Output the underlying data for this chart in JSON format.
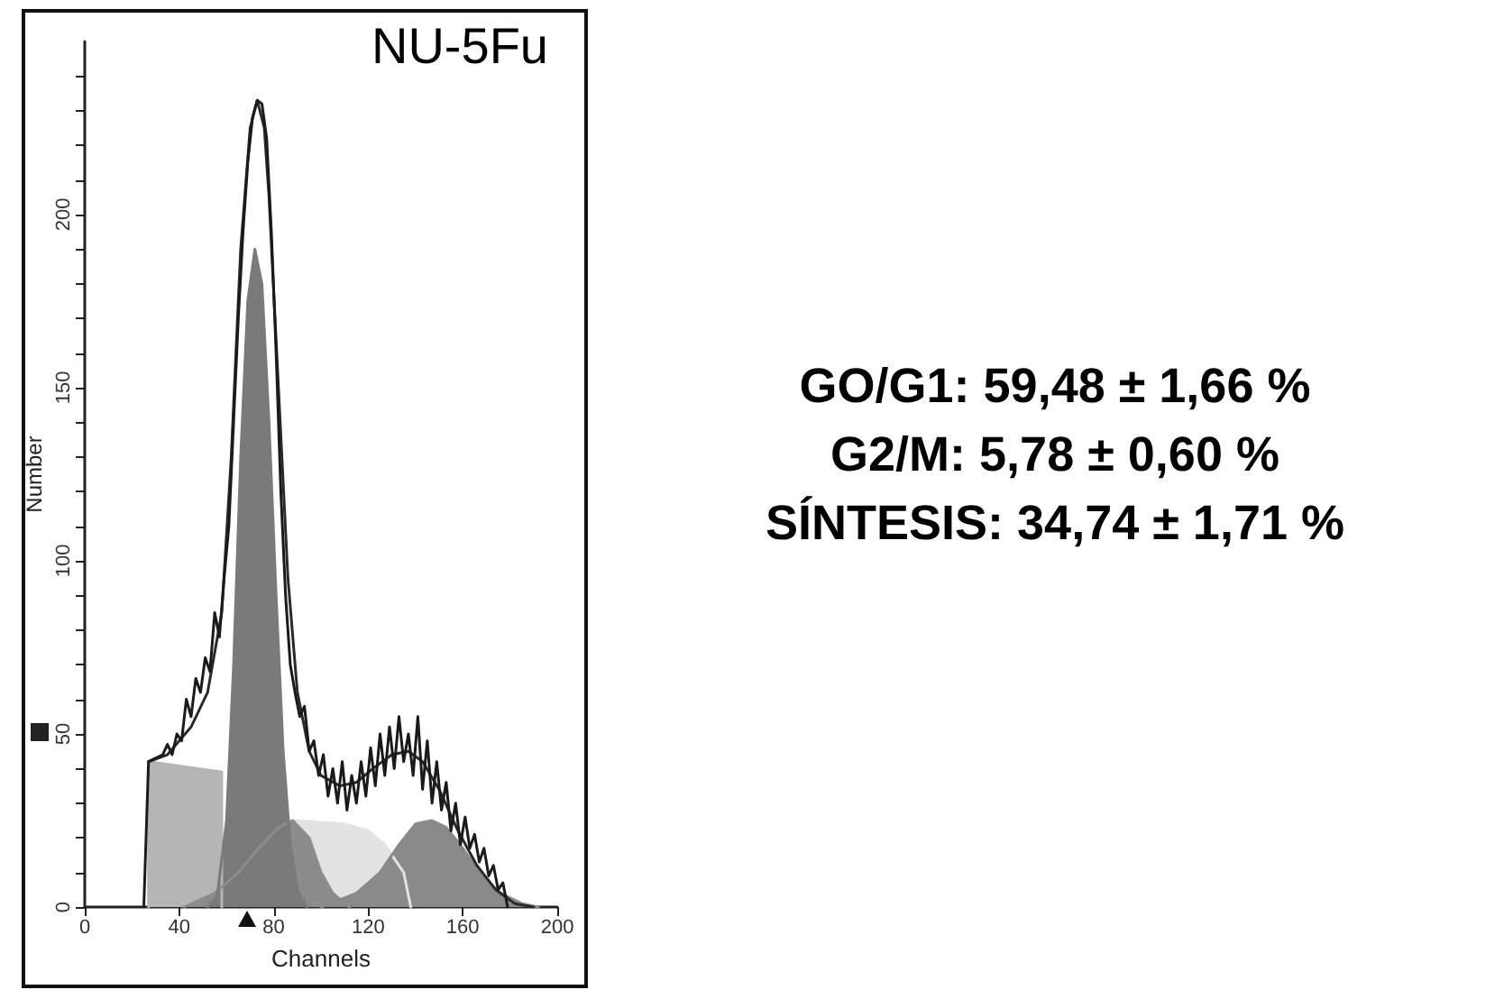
{
  "chart_data": {
    "type": "line",
    "xlabel": "Channels",
    "ylabel": "Number",
    "annotations": [
      "NU-5Fu",
      "GO/G1: 59,48 ± 1,66 %",
      "G2/M: 5,78 ± 0,60 %",
      "SÍNTESIS: 34,74 ± 1,71 %"
    ],
    "xlim": [
      0,
      200
    ],
    "xticks": [
      0,
      40,
      80,
      120,
      160,
      200
    ],
    "ylim": [
      0,
      250
    ],
    "yticks": [
      0,
      {
        "value": 10,
        "label": null
      },
      {
        "value": 20,
        "label": null
      },
      {
        "value": 30,
        "label": null
      },
      {
        "value": 40,
        "label": null
      },
      50,
      {
        "value": 60,
        "label": null
      },
      {
        "value": 70,
        "label": null
      },
      {
        "value": 80,
        "label": null
      },
      {
        "value": 90,
        "label": null
      },
      100,
      {
        "value": 110,
        "label": null
      },
      {
        "value": 120,
        "label": null
      },
      {
        "value": 130,
        "label": null
      },
      {
        "value": 140,
        "label": null
      },
      150,
      {
        "value": 160,
        "label": null
      },
      {
        "value": 170,
        "label": null
      },
      {
        "value": 180,
        "label": null
      },
      {
        "value": 190,
        "label": null
      },
      200,
      {
        "value": 210,
        "label": null
      },
      {
        "value": 220,
        "label": null
      },
      {
        "value": 230,
        "label": null
      },
      {
        "value": 240,
        "label": null
      }
    ],
    "grid": false,
    "marker": "none",
    "series": [
      {
        "type": "area",
        "color": "#e2e2e2",
        "x": [
          88,
          110,
          120,
          127,
          135,
          138
        ],
        "values": [
          25,
          24,
          22,
          18,
          10,
          0
        ]
      },
      {
        "type": "area",
        "color": "#b5b5b5",
        "x": [
          27,
          27,
          58,
          58
        ],
        "values": [
          0,
          42,
          39,
          0
        ]
      },
      {
        "type": "area",
        "color": "#8c8c8c",
        "x": [
          42,
          55,
          65,
          75,
          82,
          88,
          95,
          100,
          105,
          112
        ],
        "values": [
          0,
          4,
          10,
          18,
          23,
          25,
          20,
          10,
          4,
          0
        ]
      },
      {
        "type": "area",
        "color": "#8a8a8a",
        "x": [
          100,
          115,
          125,
          133,
          140,
          147,
          153,
          160,
          168,
          176,
          185,
          192
        ],
        "values": [
          0,
          4,
          10,
          18,
          24,
          25,
          23,
          17,
          9,
          4,
          1,
          0
        ]
      },
      {
        "type": "area",
        "color": "#7a7a7a",
        "x": [
          52,
          56,
          60,
          63,
          66,
          69,
          72,
          75,
          78,
          81,
          84,
          87,
          90,
          94
        ],
        "values": [
          0,
          3,
          25,
          70,
          130,
          175,
          190,
          180,
          140,
          90,
          45,
          18,
          5,
          0
        ]
      },
      {
        "color": "#2a2a2a",
        "x": [
          27,
          35,
          45,
          52,
          58,
          62,
          66,
          70,
          73,
          76,
          78,
          82,
          86,
          90,
          95,
          100,
          108,
          115,
          122,
          130,
          137,
          143,
          150,
          158,
          166,
          174,
          182,
          190
        ],
        "values": [
          42,
          44,
          52,
          62,
          85,
          130,
          190,
          225,
          233,
          225,
          205,
          150,
          95,
          62,
          45,
          38,
          35,
          36,
          40,
          44,
          45,
          42,
          34,
          22,
          12,
          5,
          1,
          0
        ]
      },
      {
        "color": "#1a1a1a",
        "x": [
          25,
          27,
          30,
          33,
          35,
          37,
          39,
          41,
          43,
          45,
          47,
          49,
          51,
          53,
          55,
          57,
          59,
          61,
          63,
          65,
          67,
          69,
          71,
          73,
          75,
          77,
          79,
          81,
          83,
          85,
          87,
          89,
          91,
          93,
          95,
          97,
          99,
          101,
          103,
          105,
          107,
          109,
          111,
          113,
          115,
          117,
          119,
          121,
          123,
          125,
          127,
          129,
          131,
          133,
          135,
          137,
          139,
          141,
          143,
          145,
          147,
          149,
          151,
          153,
          155,
          157,
          159,
          161,
          163,
          165,
          167,
          169,
          171,
          173,
          175,
          177,
          179
        ],
        "values": [
          0,
          42,
          43,
          44,
          47,
          44,
          50,
          48,
          60,
          55,
          66,
          62,
          72,
          68,
          85,
          78,
          95,
          110,
          140,
          170,
          195,
          215,
          228,
          233,
          232,
          222,
          195,
          160,
          120,
          90,
          70,
          62,
          55,
          58,
          45,
          48,
          38,
          44,
          32,
          40,
          30,
          42,
          28,
          38,
          30,
          42,
          32,
          46,
          35,
          50,
          38,
          52,
          40,
          55,
          42,
          50,
          38,
          55,
          34,
          48,
          30,
          42,
          28,
          36,
          22,
          30,
          18,
          26,
          17,
          21,
          13,
          17,
          9,
          12,
          5,
          7,
          0
        ]
      }
    ]
  }
}
